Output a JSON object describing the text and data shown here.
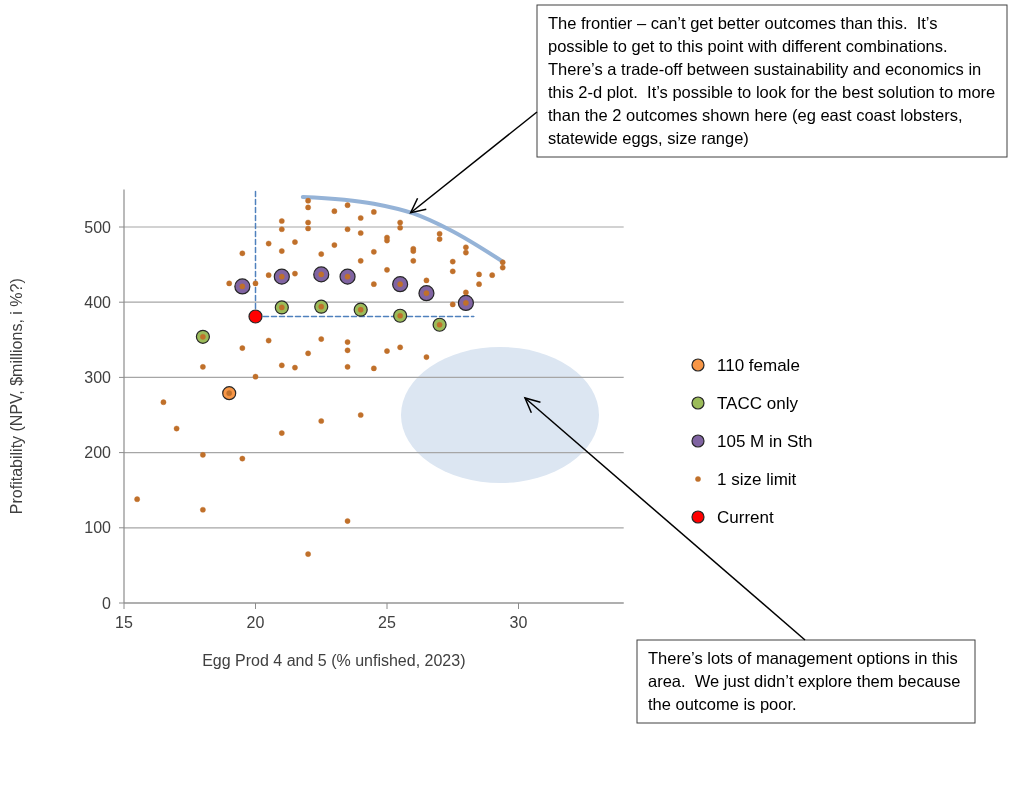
{
  "chart_data": {
    "type": "scatter",
    "xlabel": "Egg Prod 4 and 5 (% unfished, 2023)",
    "ylabel": "Profitability (NPV, $millions, i %?)",
    "xlim": [
      15,
      34
    ],
    "xticks": [
      15,
      20,
      25,
      30
    ],
    "ylim": [
      0,
      550
    ],
    "yticks": [
      0,
      100,
      200,
      300,
      400,
      500
    ],
    "grid": "y",
    "legend": "right",
    "series": [
      {
        "type": "line",
        "color": "#95b3d7",
        "line_style": "solid",
        "x": [
          21.8,
          24.5,
          26,
          27.4,
          29.4
        ],
        "values": [
          540,
          531,
          518,
          496,
          454
        ]
      },
      {
        "type": "line",
        "color": "#4f81bd",
        "line_style": "dashed",
        "x": [
          20,
          20
        ],
        "values": [
          381,
          550
        ]
      },
      {
        "type": "line",
        "color": "#4f81bd",
        "line_style": "dashed",
        "x": [
          20,
          28.3
        ],
        "values": [
          381,
          381
        ]
      },
      {
        "name": "110 female",
        "color": "#f79646",
        "marker": "circle",
        "x": [
          19
        ],
        "values": [
          279
        ]
      },
      {
        "name": "TACC only",
        "color": "#9bbb59",
        "marker": "circle",
        "x": [
          18,
          21,
          22.5,
          24,
          25.5,
          27
        ],
        "values": [
          354,
          393,
          394,
          390,
          382,
          370
        ]
      },
      {
        "name": "105 M in Sth",
        "color": "#8064a2",
        "marker": "circle",
        "x": [
          19.5,
          21,
          22.5,
          23.5,
          25.5,
          26.5,
          28
        ],
        "values": [
          421,
          434,
          437,
          434,
          424,
          412,
          399
        ]
      },
      {
        "name": "1 size limit",
        "color": "#c0702a",
        "marker": "circle",
        "x": [
          22,
          22,
          21,
          22,
          21,
          22,
          20.5,
          21.5,
          19.5,
          21,
          20.5,
          21.5,
          19,
          20,
          20.5,
          19.5,
          22,
          18,
          21,
          21.5,
          20,
          23.5,
          23,
          24,
          24.5,
          23.5,
          24,
          25.5,
          25.5,
          25,
          25,
          27,
          27,
          23,
          24.5,
          26,
          26,
          28,
          28,
          22.5,
          24,
          26,
          27.5,
          27.5,
          25,
          29.4,
          29.4,
          28.5,
          29,
          26.5,
          28.5,
          24.5,
          28,
          27.5,
          22.5,
          23.5,
          23.5,
          25,
          25.5,
          23.5,
          24.5,
          26.5,
          16.5,
          17,
          21,
          22.5,
          24,
          18,
          19.5,
          15.5,
          18,
          23.5,
          22,
          19,
          18,
          21,
          22.5,
          24,
          25.5,
          27,
          19.5,
          21,
          22.5,
          23.5,
          25.5,
          26.5,
          28
        ],
        "values": [
          535,
          526,
          508,
          506,
          497,
          498,
          478,
          480,
          465,
          468,
          436,
          438,
          425,
          425,
          349,
          339,
          332,
          314,
          316,
          313,
          301,
          529,
          521,
          512,
          520,
          497,
          492,
          506,
          499,
          486,
          482,
          491,
          484,
          476,
          467,
          471,
          468,
          473,
          466,
          464,
          455,
          455,
          454,
          441,
          443,
          453,
          446,
          437,
          436,
          429,
          424,
          424,
          413,
          397,
          351,
          347,
          336,
          335,
          340,
          314,
          312,
          327,
          267,
          232,
          226,
          242,
          250,
          197,
          192,
          138,
          124,
          109,
          65,
          279,
          354,
          393,
          394,
          390,
          382,
          370,
          421,
          434,
          437,
          434,
          424,
          412,
          399
        ]
      },
      {
        "name": "Current",
        "color": "#ff0000",
        "marker": "circle",
        "x": [
          20
        ],
        "values": [
          381
        ]
      }
    ],
    "annotations": [
      {
        "text": "The frontier – can’t get better outcomes than this.  It’s possible to get to this point with different combinations.\nThere’s a trade-off between sustainability and economics in this 2-d plot.  It’s possible to look for the best solution to more than the 2 outcomes shown here (eg east coast lobsters, statewide eggs, size range)",
        "x": 25.9,
        "y": 519
      },
      "There’s lots of management options in this area.  We just didn’t explore them because the outcome is poor."
    ]
  }
}
